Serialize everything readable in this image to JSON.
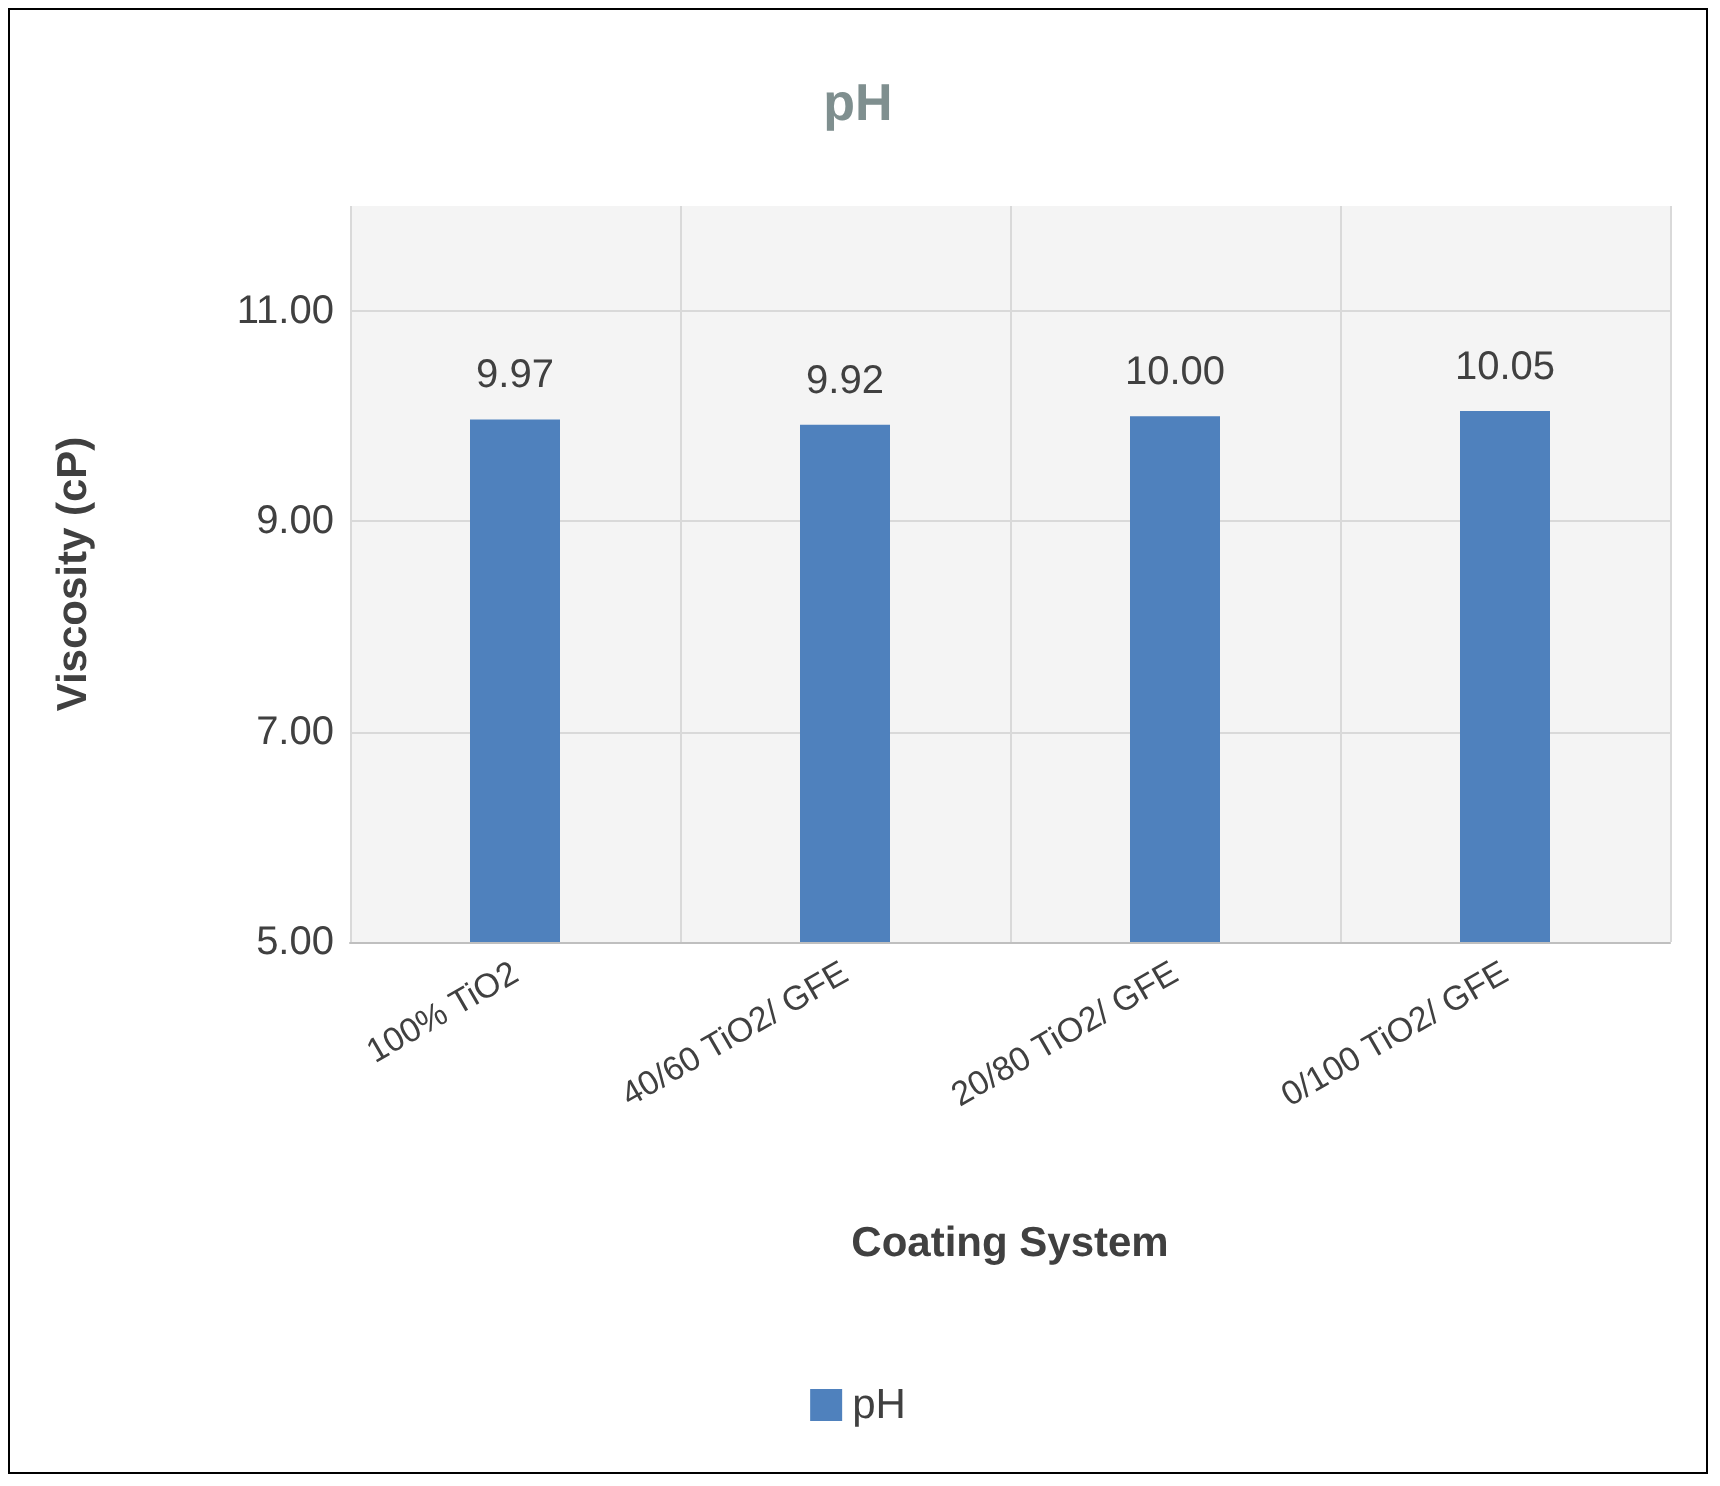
{
  "chart_data": {
    "type": "bar",
    "title": "pH",
    "xlabel": "Coating System",
    "ylabel": "Viscosity (cP)",
    "categories": [
      "100% TiO2",
      "40/60 TiO2/ GFE",
      "20/80 TiO2/ GFE",
      "0/100 TiO2/ GFE"
    ],
    "series": [
      {
        "name": "pH",
        "color": "#4f81bd",
        "values": [
          9.97,
          9.92,
          10.0,
          10.05
        ]
      }
    ],
    "value_labels": [
      "9.97",
      "9.92",
      "10.00",
      "10.05"
    ],
    "ylim": [
      5,
      12
    ],
    "yticks": [
      {
        "value": 5,
        "label": "5.00"
      },
      {
        "value": 7,
        "label": "7.00"
      },
      {
        "value": 9,
        "label": "9.00"
      },
      {
        "value": 11,
        "label": "11.00"
      }
    ],
    "grid": true,
    "legend": "bottom"
  }
}
